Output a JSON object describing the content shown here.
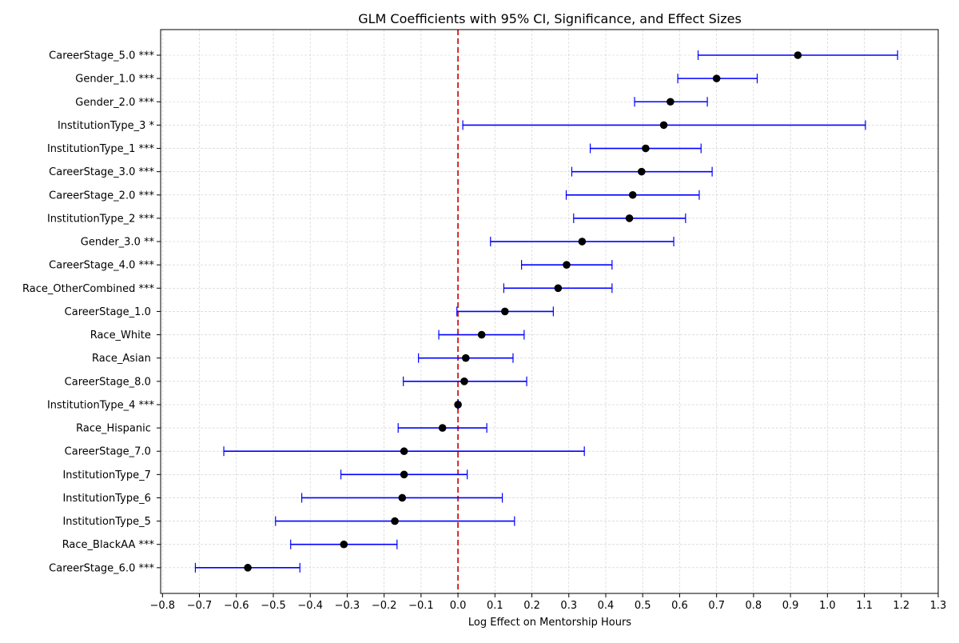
{
  "chart_data": {
    "type": "scatter",
    "title": "GLM Coefficients with 95% CI, Significance, and Effect Sizes",
    "xlabel": "Log Effect on Mentorship Hours",
    "ylabel": "",
    "xlim": [
      -0.805,
      1.3
    ],
    "xticks": [
      -0.8,
      -0.7,
      -0.6,
      -0.5,
      -0.4,
      -0.3,
      -0.2,
      -0.1,
      0.0,
      0.1,
      0.2,
      0.3,
      0.4,
      0.5,
      0.6,
      0.7,
      0.8,
      0.9,
      1.0,
      1.1,
      1.2,
      1.3
    ],
    "xtick_labels": [
      "−0.8",
      "−0.7",
      "−0.6",
      "−0.5",
      "−0.4",
      "−0.3",
      "−0.2",
      "−0.1",
      "0.0",
      "0.1",
      "0.2",
      "0.3",
      "0.4",
      "0.5",
      "0.6",
      "0.7",
      "0.8",
      "0.9",
      "1.0",
      "1.1",
      "1.2",
      "1.3"
    ],
    "grid": true,
    "reference_line": {
      "x": 0.0,
      "color": "#d62728",
      "style": "dashed"
    },
    "colors": {
      "point": "#000000",
      "ci": "#0000ff",
      "grid": "#cccccc"
    },
    "points": [
      {
        "label": "CareerStage_5.0 ***",
        "estimate": 0.92,
        "ci_low": 0.65,
        "ci_high": 1.19
      },
      {
        "label": "Gender_1.0 ***",
        "estimate": 0.7,
        "ci_low": 0.595,
        "ci_high": 0.81
      },
      {
        "label": "Gender_2.0 ***",
        "estimate": 0.575,
        "ci_low": 0.478,
        "ci_high": 0.675
      },
      {
        "label": "InstitutionType_3 *",
        "estimate": 0.557,
        "ci_low": 0.013,
        "ci_high": 1.103
      },
      {
        "label": "InstitutionType_1 ***",
        "estimate": 0.508,
        "ci_low": 0.358,
        "ci_high": 0.658
      },
      {
        "label": "CareerStage_3.0 ***",
        "estimate": 0.497,
        "ci_low": 0.308,
        "ci_high": 0.688
      },
      {
        "label": "CareerStage_2.0 ***",
        "estimate": 0.473,
        "ci_low": 0.293,
        "ci_high": 0.653
      },
      {
        "label": "InstitutionType_2 ***",
        "estimate": 0.464,
        "ci_low": 0.313,
        "ci_high": 0.616
      },
      {
        "label": "Gender_3.0 **",
        "estimate": 0.336,
        "ci_low": 0.088,
        "ci_high": 0.584
      },
      {
        "label": "CareerStage_4.0 ***",
        "estimate": 0.294,
        "ci_low": 0.172,
        "ci_high": 0.417
      },
      {
        "label": "Race_OtherCombined ***",
        "estimate": 0.271,
        "ci_low": 0.124,
        "ci_high": 0.417
      },
      {
        "label": "CareerStage_1.0 ",
        "estimate": 0.127,
        "ci_low": -0.003,
        "ci_high": 0.258
      },
      {
        "label": "Race_White ",
        "estimate": 0.064,
        "ci_low": -0.052,
        "ci_high": 0.179
      },
      {
        "label": "Race_Asian ",
        "estimate": 0.021,
        "ci_low": -0.107,
        "ci_high": 0.149
      },
      {
        "label": "CareerStage_8.0 ",
        "estimate": 0.017,
        "ci_low": -0.148,
        "ci_high": 0.186
      },
      {
        "label": "InstitutionType_4 ***",
        "estimate": 0.0,
        "ci_low": 0.0,
        "ci_high": 0.0
      },
      {
        "label": "Race_Hispanic ",
        "estimate": -0.042,
        "ci_low": -0.162,
        "ci_high": 0.078
      },
      {
        "label": "CareerStage_7.0 ",
        "estimate": -0.146,
        "ci_low": -0.634,
        "ci_high": 0.342
      },
      {
        "label": "InstitutionType_7 ",
        "estimate": -0.146,
        "ci_low": -0.317,
        "ci_high": 0.025
      },
      {
        "label": "InstitutionType_6 ",
        "estimate": -0.151,
        "ci_low": -0.423,
        "ci_high": 0.12
      },
      {
        "label": "InstitutionType_5 ",
        "estimate": -0.171,
        "ci_low": -0.494,
        "ci_high": 0.153
      },
      {
        "label": "Race_BlackAA ***",
        "estimate": -0.309,
        "ci_low": -0.453,
        "ci_high": -0.165
      },
      {
        "label": "CareerStage_6.0 ***",
        "estimate": -0.569,
        "ci_low": -0.711,
        "ci_high": -0.428
      }
    ]
  }
}
